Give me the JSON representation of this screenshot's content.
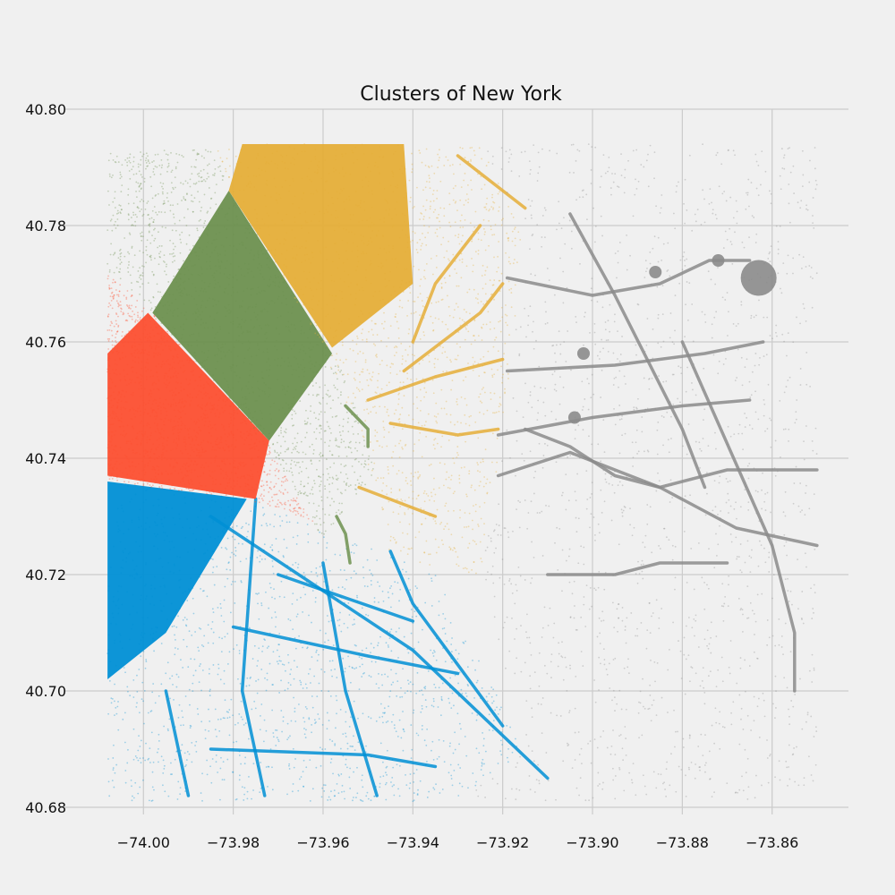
{
  "chart_data": {
    "type": "scatter",
    "title": "Clusters of New York",
    "xlabel": "",
    "ylabel": "",
    "xlim": [
      -74.016,
      -73.843
    ],
    "ylim": [
      40.68,
      40.8
    ],
    "x_ticks": [
      -74.0,
      -73.98,
      -73.96,
      -73.94,
      -73.92,
      -73.9,
      -73.88,
      -73.86
    ],
    "x_tick_labels": [
      "−74.00",
      "−73.98",
      "−73.96",
      "−73.94",
      "−73.92",
      "−73.90",
      "−73.88",
      "−73.86"
    ],
    "y_ticks": [
      40.68,
      40.7,
      40.72,
      40.74,
      40.76,
      40.78,
      40.8
    ],
    "y_tick_labels": [
      "40.68",
      "40.70",
      "40.72",
      "40.74",
      "40.76",
      "40.78",
      "40.80"
    ],
    "grid": true,
    "legend": "none",
    "background": "#f0f0f0",
    "series": [
      {
        "color": "#008fd5",
        "region": [
          [
            -74.008,
            40.681
          ],
          [
            -74.008,
            40.736
          ],
          [
            -73.977,
            40.733
          ],
          [
            -73.935,
            40.72
          ],
          [
            -73.915,
            40.69
          ],
          [
            -73.93,
            40.681
          ]
        ],
        "dense_core": [
          [
            -74.008,
            40.702
          ],
          [
            -74.008,
            40.736
          ],
          [
            -73.977,
            40.733
          ],
          [
            -73.995,
            40.71
          ]
        ],
        "streets": [
          [
            [
              -73.985,
              40.73
            ],
            [
              -73.94,
              40.707
            ],
            [
              -73.91,
              40.685
            ]
          ],
          [
            [
              -73.98,
              40.711
            ],
            [
              -73.95,
              40.706
            ],
            [
              -73.93,
              40.703
            ]
          ],
          [
            [
              -73.995,
              40.7
            ],
            [
              -73.99,
              40.682
            ]
          ],
          [
            [
              -73.985,
              40.69
            ],
            [
              -73.95,
              40.689
            ],
            [
              -73.935,
              40.687
            ]
          ],
          [
            [
              -73.97,
              40.72
            ],
            [
              -73.955,
              40.716
            ],
            [
              -73.94,
              40.712
            ]
          ],
          [
            [
              -73.96,
              40.722
            ],
            [
              -73.955,
              40.7
            ],
            [
              -73.948,
              40.682
            ]
          ],
          [
            [
              -73.975,
              40.733
            ],
            [
              -73.978,
              40.7
            ],
            [
              -73.973,
              40.682
            ]
          ],
          [
            [
              -73.945,
              40.724
            ],
            [
              -73.94,
              40.715
            ],
            [
              -73.92,
              40.694
            ]
          ]
        ]
      },
      {
        "color": "#fc4f30",
        "region": [
          [
            -74.008,
            40.736
          ],
          [
            -74.008,
            40.772
          ],
          [
            -73.998,
            40.765
          ],
          [
            -73.972,
            40.742
          ],
          [
            -73.962,
            40.729
          ],
          [
            -73.977,
            40.733
          ]
        ],
        "dense_core": [
          [
            -74.008,
            40.737
          ],
          [
            -74.008,
            40.758
          ],
          [
            -73.999,
            40.765
          ],
          [
            -73.972,
            40.743
          ],
          [
            -73.975,
            40.733
          ]
        ],
        "streets": []
      },
      {
        "color": "#6d904f",
        "region": [
          [
            -74.008,
            40.793
          ],
          [
            -73.985,
            40.793
          ],
          [
            -73.968,
            40.77
          ],
          [
            -73.955,
            40.754
          ],
          [
            -73.948,
            40.738
          ],
          [
            -73.96,
            40.726
          ],
          [
            -73.972,
            40.742
          ],
          [
            -73.998,
            40.765
          ],
          [
            -74.008,
            40.772
          ]
        ],
        "dense_core": [
          [
            -73.998,
            40.765
          ],
          [
            -73.981,
            40.786
          ],
          [
            -73.958,
            40.758
          ],
          [
            -73.972,
            40.743
          ]
        ],
        "streets": [
          [
            [
              -73.955,
              40.749
            ],
            [
              -73.95,
              40.745
            ],
            [
              -73.95,
              40.742
            ]
          ],
          [
            [
              -73.957,
              40.73
            ],
            [
              -73.955,
              40.727
            ],
            [
              -73.954,
              40.722
            ]
          ]
        ]
      },
      {
        "color": "#e5ae38",
        "region": [
          [
            -73.985,
            40.794
          ],
          [
            -73.925,
            40.794
          ],
          [
            -73.915,
            40.78
          ],
          [
            -73.92,
            40.743
          ],
          [
            -73.925,
            40.72
          ],
          [
            -73.945,
            40.723
          ],
          [
            -73.952,
            40.745
          ],
          [
            -73.968,
            40.77
          ]
        ],
        "dense_core": [
          [
            -73.981,
            40.786
          ],
          [
            -73.978,
            40.794
          ],
          [
            -73.942,
            40.794
          ],
          [
            -73.94,
            40.77
          ],
          [
            -73.958,
            40.759
          ]
        ],
        "streets": [
          [
            [
              -73.94,
              40.76
            ],
            [
              -73.935,
              40.77
            ],
            [
              -73.925,
              40.78
            ]
          ],
          [
            [
              -73.95,
              40.75
            ],
            [
              -73.935,
              40.754
            ],
            [
              -73.92,
              40.757
            ]
          ],
          [
            [
              -73.945,
              40.746
            ],
            [
              -73.93,
              40.744
            ],
            [
              -73.921,
              40.745
            ]
          ],
          [
            [
              -73.942,
              40.755
            ],
            [
              -73.925,
              40.765
            ],
            [
              -73.92,
              40.77
            ]
          ],
          [
            [
              -73.93,
              40.792
            ],
            [
              -73.915,
              40.783
            ]
          ],
          [
            [
              -73.952,
              40.735
            ],
            [
              -73.935,
              40.73
            ]
          ]
        ]
      },
      {
        "color": "#8b8b8b",
        "region": [
          [
            -73.925,
            40.794
          ],
          [
            -73.85,
            40.794
          ],
          [
            -73.85,
            40.681
          ],
          [
            -73.93,
            40.681
          ],
          [
            -73.915,
            40.69
          ],
          [
            -73.925,
            40.72
          ],
          [
            -73.92,
            40.743
          ],
          [
            -73.915,
            40.78
          ]
        ],
        "dense_core": [],
        "streets": [
          [
            [
              -73.919,
              40.771
            ],
            [
              -73.9,
              40.768
            ],
            [
              -73.885,
              40.77
            ],
            [
              -73.874,
              40.774
            ],
            [
              -73.865,
              40.774
            ]
          ],
          [
            [
              -73.919,
              40.755
            ],
            [
              -73.895,
              40.756
            ],
            [
              -73.875,
              40.758
            ],
            [
              -73.862,
              40.76
            ]
          ],
          [
            [
              -73.921,
              40.744
            ],
            [
              -73.9,
              40.747
            ],
            [
              -73.88,
              40.749
            ],
            [
              -73.865,
              40.75
            ]
          ],
          [
            [
              -73.921,
              40.737
            ],
            [
              -73.905,
              40.741
            ],
            [
              -73.885,
              40.735
            ],
            [
              -73.868,
              40.728
            ],
            [
              -73.85,
              40.725
            ]
          ],
          [
            [
              -73.905,
              40.782
            ],
            [
              -73.895,
              40.768
            ],
            [
              -73.88,
              40.745
            ],
            [
              -73.875,
              40.735
            ]
          ],
          [
            [
              -73.915,
              40.745
            ],
            [
              -73.905,
              40.742
            ],
            [
              -73.895,
              40.737
            ],
            [
              -73.885,
              40.735
            ],
            [
              -73.87,
              40.738
            ],
            [
              -73.85,
              40.738
            ]
          ],
          [
            [
              -73.88,
              40.76
            ],
            [
              -73.86,
              40.725
            ],
            [
              -73.855,
              40.71
            ],
            [
              -73.855,
              40.7
            ]
          ],
          [
            [
              -73.91,
              40.72
            ],
            [
              -73.895,
              40.72
            ],
            [
              -73.885,
              40.722
            ],
            [
              -73.87,
              40.722
            ]
          ]
        ],
        "blobs": [
          [
            -73.863,
            40.771
          ],
          [
            -73.872,
            40.774
          ],
          [
            -73.886,
            40.772
          ],
          [
            -73.902,
            40.758
          ],
          [
            -73.904,
            40.747
          ]
        ]
      }
    ]
  }
}
